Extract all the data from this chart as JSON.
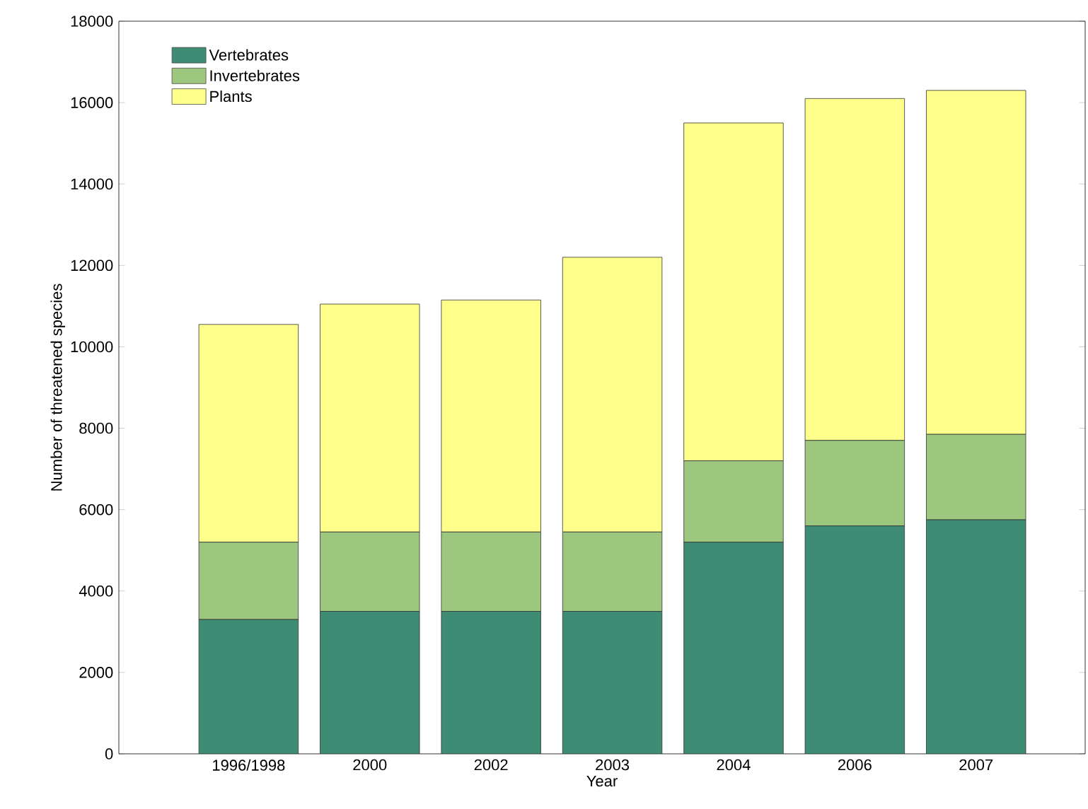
{
  "chart_data": {
    "type": "bar",
    "stacked": true,
    "xlabel": "Year",
    "ylabel": "Number of threatened species",
    "categories": [
      "1996/1998",
      "2000",
      "2002",
      "2003",
      "2004",
      "2006",
      "2007"
    ],
    "series": [
      {
        "name": "Vertebrates",
        "color": "#3d8c73",
        "values": [
          3300,
          3500,
          3500,
          3500,
          5200,
          5600,
          5750
        ]
      },
      {
        "name": "Invertebrates",
        "color": "#9dc77f",
        "values": [
          1900,
          1950,
          1950,
          1950,
          2000,
          2100,
          2100
        ]
      },
      {
        "name": "Plants",
        "color": "#ffff8c",
        "values": [
          5350,
          5600,
          5700,
          6750,
          8300,
          8400,
          8450
        ]
      }
    ],
    "ylim": [
      0,
      18000
    ],
    "yticks": [
      0,
      2000,
      4000,
      6000,
      8000,
      10000,
      12000,
      14000,
      16000,
      18000
    ],
    "legend": "top left",
    "grid": false
  }
}
